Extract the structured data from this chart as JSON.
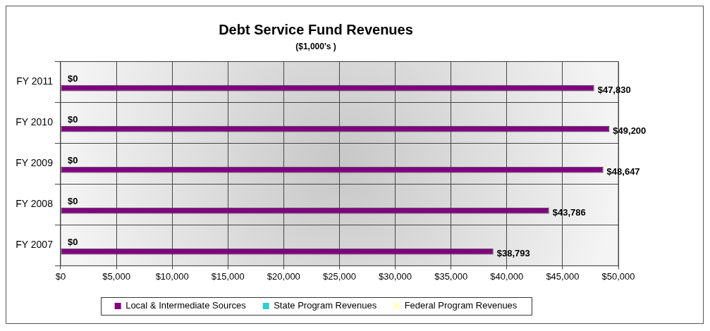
{
  "chart_data": {
    "type": "bar",
    "orientation": "horizontal",
    "title": "Debt Service Fund Revenues",
    "subtitle": "($1,000's )",
    "categories": [
      "FY 2011",
      "FY 2010",
      "FY 2009",
      "FY 2008",
      "FY 2007"
    ],
    "series": [
      {
        "name": "Local & Intermediate Sources",
        "color": "#800080",
        "values": [
          47830,
          49200,
          48647,
          43786,
          38793
        ],
        "value_labels": [
          "$47,830",
          "$49,200",
          "$48,647",
          "$43,786",
          "$38,793"
        ]
      },
      {
        "name": "State Program Revenues",
        "color": "#33cccc",
        "values": [
          0,
          0,
          0,
          0,
          0
        ],
        "value_labels": [
          "$0",
          "$0",
          "$0",
          "$0",
          "$0"
        ]
      },
      {
        "name": "Federal Program Revenues",
        "color": "#ffffcc",
        "values": [
          0,
          0,
          0,
          0,
          0
        ],
        "value_labels": [
          null,
          null,
          null,
          null,
          null
        ]
      }
    ],
    "xlim": [
      0,
      50000
    ],
    "xticks": [
      {
        "value": 0,
        "label": "$0"
      },
      {
        "value": 5000,
        "label": "$5,000"
      },
      {
        "value": 10000,
        "label": "$10,000"
      },
      {
        "value": 15000,
        "label": "$15,000"
      },
      {
        "value": 20000,
        "label": "$20,000"
      },
      {
        "value": 25000,
        "label": "$25,000"
      },
      {
        "value": 30000,
        "label": "$30,000"
      },
      {
        "value": 35000,
        "label": "$35,000"
      },
      {
        "value": 40000,
        "label": "$40,000"
      },
      {
        "value": 45000,
        "label": "$45,000"
      },
      {
        "value": 50000,
        "label": "$50,000"
      }
    ],
    "grid": true,
    "legend": "bottom"
  }
}
